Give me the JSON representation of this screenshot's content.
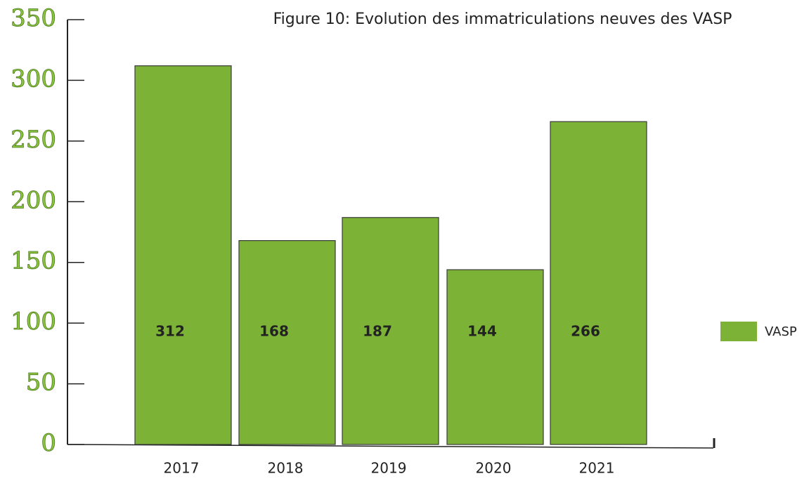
{
  "chart_data": {
    "type": "bar",
    "title": "Figure 10: Evolution des immatriculations neuves des VASP",
    "categories": [
      "2017",
      "2018",
      "2019",
      "2020",
      "2021"
    ],
    "series": [
      {
        "name": "VASP",
        "color": "#7cb236",
        "values": [
          312,
          168,
          187,
          144,
          266
        ]
      }
    ],
    "ylim": [
      0,
      350
    ],
    "yticks": [
      0,
      50,
      100,
      150,
      200,
      250,
      300,
      350
    ],
    "legend": "right"
  }
}
